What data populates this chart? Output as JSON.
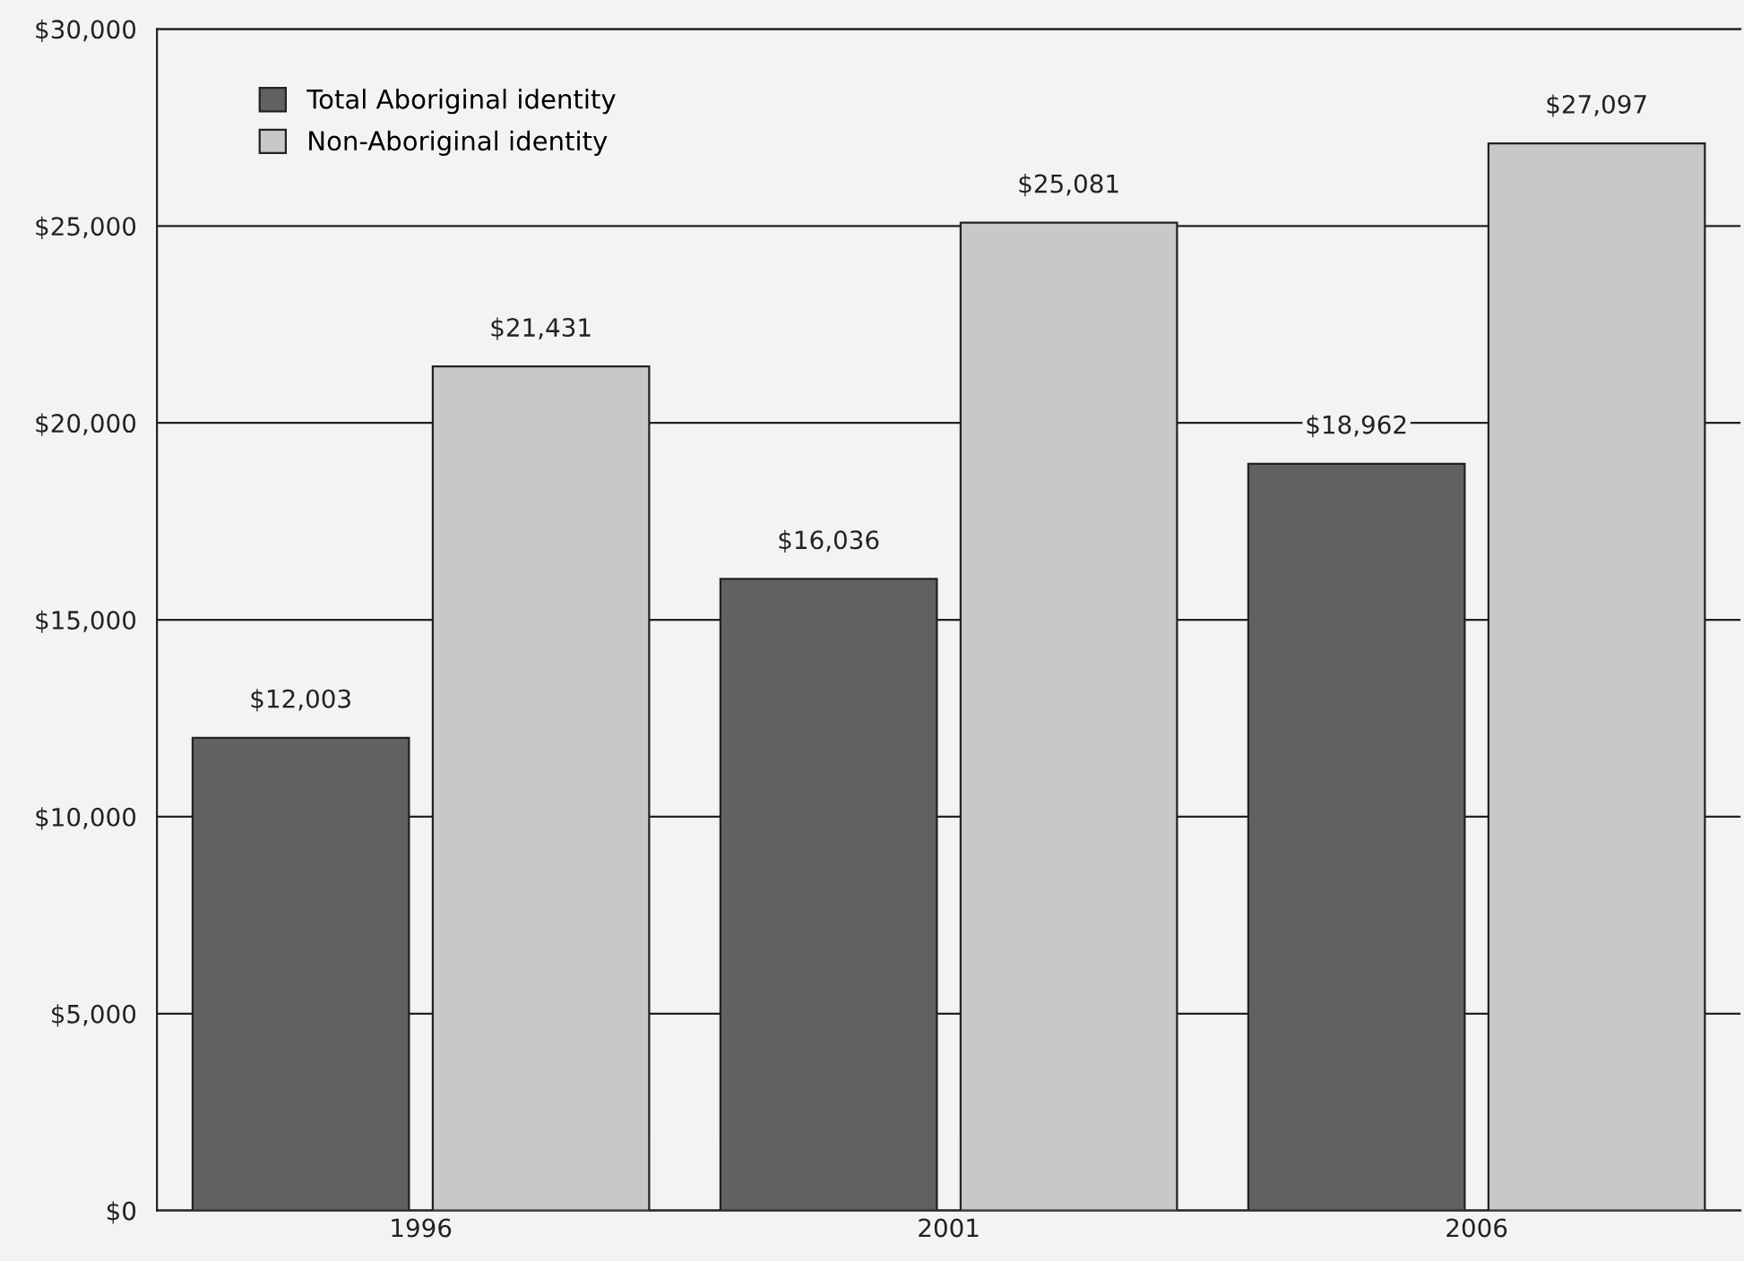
{
  "chart_data": {
    "type": "bar",
    "categories": [
      "1996",
      "2001",
      "2006"
    ],
    "series": [
      {
        "name": "Total Aboriginal identity",
        "color": "#616063",
        "values": [
          12003,
          16036,
          18962
        ],
        "value_labels": [
          "$12,003",
          "$16,036",
          "$18,962"
        ]
      },
      {
        "name": "Non-Aboriginal identity",
        "color": "#c8c8ca",
        "values": [
          21431,
          25081,
          27097
        ],
        "value_labels": [
          "$21,431",
          "$25,081",
          "$27,097"
        ]
      }
    ],
    "ylim": [
      0,
      30000
    ],
    "yticks": [
      {
        "value": 0,
        "label": "$0"
      },
      {
        "value": 5000,
        "label": "$5,000"
      },
      {
        "value": 10000,
        "label": "$10,000"
      },
      {
        "value": 15000,
        "label": "$15,000"
      },
      {
        "value": 20000,
        "label": "$20,000"
      },
      {
        "value": 25000,
        "label": "$25,000"
      },
      {
        "value": 30000,
        "label": "$30,000"
      }
    ],
    "grid": "y",
    "legend": "top left"
  }
}
